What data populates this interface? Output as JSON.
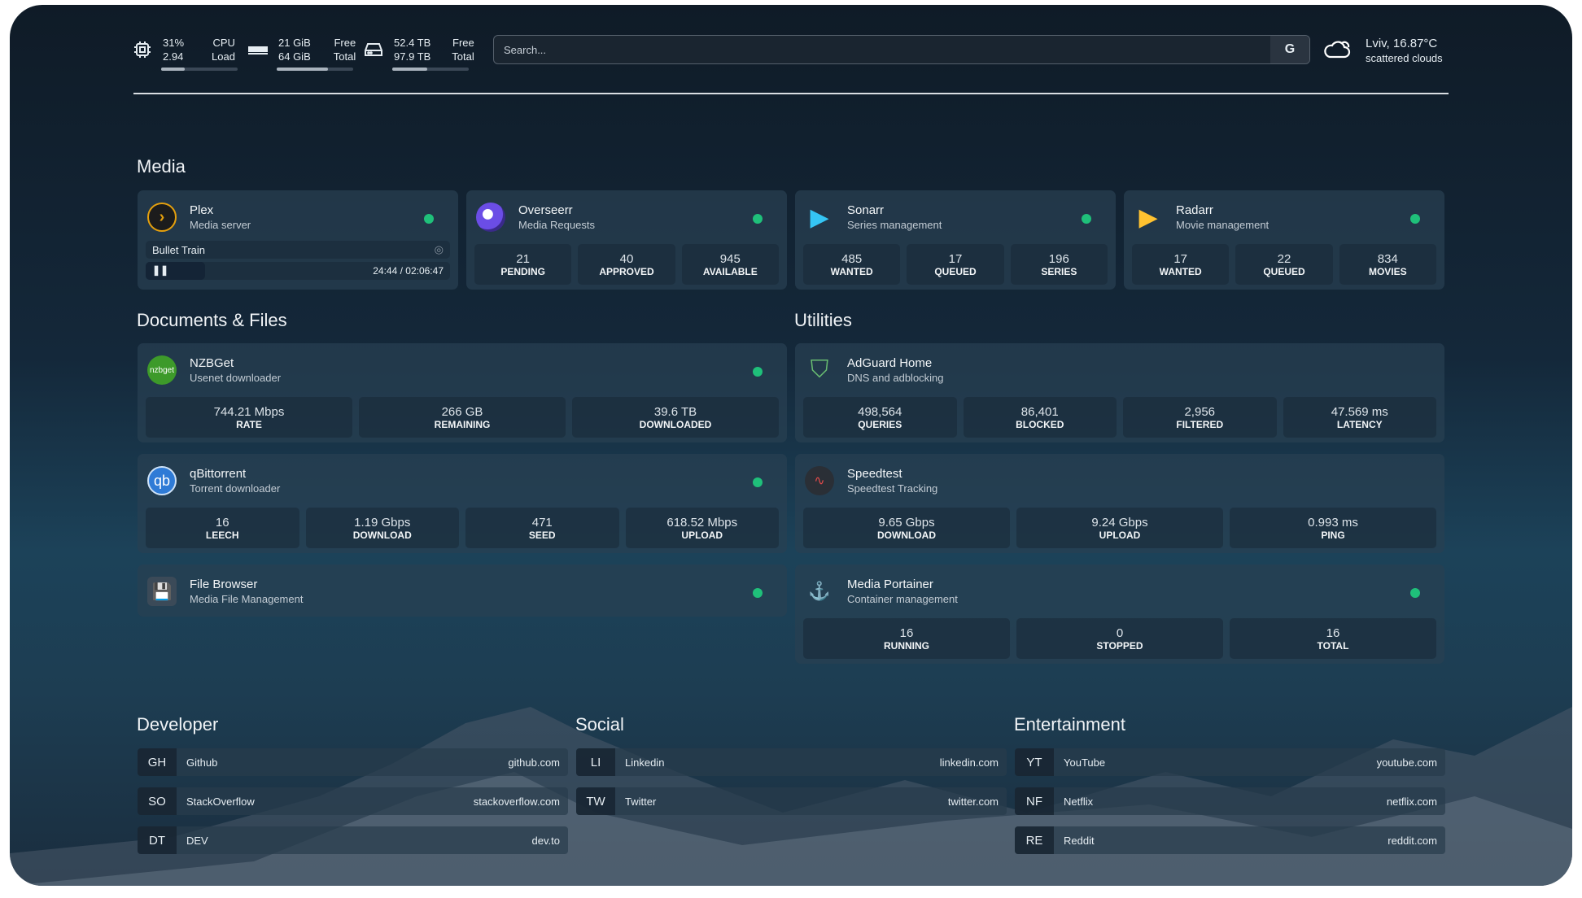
{
  "header": {
    "cpu": {
      "value1": "31%",
      "value2": "2.94",
      "label1": "CPU",
      "label2": "Load",
      "percent": 31,
      "icon": "cpu-icon"
    },
    "memory": {
      "value1": "21 GiB",
      "value2": "64 GiB",
      "label1": "Free",
      "label2": "Total",
      "percent": 67,
      "icon": "memory-icon"
    },
    "disk": {
      "value1": "52.4 TB",
      "value2": "97.9 TB",
      "label1": "Free",
      "label2": "Total",
      "percent": 46,
      "icon": "hard-drive-icon"
    },
    "search": {
      "placeholder": "Search...",
      "button": "G"
    },
    "weather": {
      "location": "Lviv, 16.87°C",
      "condition": "scattered clouds",
      "icon": "cloud-icon"
    }
  },
  "sections": {
    "media": "Media",
    "documents": "Documents & Files",
    "utilities": "Utilities",
    "developer": "Developer",
    "social": "Social",
    "entertainment": "Entertainment"
  },
  "media": [
    {
      "title": "Plex",
      "subtitle": "Media server",
      "now_playing": "Bullet Train",
      "time": "24:44 / 02:06:47",
      "progress": 0.195
    },
    {
      "title": "Overseerr",
      "subtitle": "Media Requests",
      "stats": [
        {
          "value": "21",
          "label": "PENDING"
        },
        {
          "value": "40",
          "label": "APPROVED"
        },
        {
          "value": "945",
          "label": "AVAILABLE"
        }
      ]
    },
    {
      "title": "Sonarr",
      "subtitle": "Series management",
      "stats": [
        {
          "value": "485",
          "label": "WANTED"
        },
        {
          "value": "17",
          "label": "QUEUED"
        },
        {
          "value": "196",
          "label": "SERIES"
        }
      ]
    },
    {
      "title": "Radarr",
      "subtitle": "Movie management",
      "stats": [
        {
          "value": "17",
          "label": "WANTED"
        },
        {
          "value": "22",
          "label": "QUEUED"
        },
        {
          "value": "834",
          "label": "MOVIES"
        }
      ]
    }
  ],
  "documents": [
    {
      "title": "NZBGet",
      "subtitle": "Usenet downloader",
      "logo_text": "nzbget",
      "stats": [
        {
          "value": "744.21 Mbps",
          "label": "RATE"
        },
        {
          "value": "266 GB",
          "label": "REMAINING"
        },
        {
          "value": "39.6 TB",
          "label": "DOWNLOADED"
        }
      ]
    },
    {
      "title": "qBittorrent",
      "subtitle": "Torrent downloader",
      "logo_text": "qb",
      "stats": [
        {
          "value": "16",
          "label": "LEECH"
        },
        {
          "value": "1.19 Gbps",
          "label": "DOWNLOAD"
        },
        {
          "value": "471",
          "label": "SEED"
        },
        {
          "value": "618.52 Mbps",
          "label": "UPLOAD"
        }
      ]
    },
    {
      "title": "File Browser",
      "subtitle": "Media File Management"
    }
  ],
  "utilities": [
    {
      "title": "AdGuard Home",
      "subtitle": "DNS and adblocking",
      "stats": [
        {
          "value": "498,564",
          "label": "QUERIES"
        },
        {
          "value": "86,401",
          "label": "BLOCKED"
        },
        {
          "value": "2,956",
          "label": "FILTERED"
        },
        {
          "value": "47.569 ms",
          "label": "LATENCY"
        }
      ]
    },
    {
      "title": "Speedtest",
      "subtitle": "Speedtest Tracking",
      "stats": [
        {
          "value": "9.65 Gbps",
          "label": "DOWNLOAD"
        },
        {
          "value": "9.24 Gbps",
          "label": "UPLOAD"
        },
        {
          "value": "0.993 ms",
          "label": "PING"
        }
      ]
    },
    {
      "title": "Media Portainer",
      "subtitle": "Container management",
      "stats": [
        {
          "value": "16",
          "label": "RUNNING"
        },
        {
          "value": "0",
          "label": "STOPPED"
        },
        {
          "value": "16",
          "label": "TOTAL"
        }
      ]
    }
  ],
  "developer": [
    {
      "abbr": "GH",
      "name": "Github",
      "url": "github.com"
    },
    {
      "abbr": "SO",
      "name": "StackOverflow",
      "url": "stackoverflow.com"
    },
    {
      "abbr": "DT",
      "name": "DEV",
      "url": "dev.to"
    }
  ],
  "social": [
    {
      "abbr": "LI",
      "name": "Linkedin",
      "url": "linkedin.com"
    },
    {
      "abbr": "TW",
      "name": "Twitter",
      "url": "twitter.com"
    }
  ],
  "entertainment": [
    {
      "abbr": "YT",
      "name": "YouTube",
      "url": "youtube.com"
    },
    {
      "abbr": "NF",
      "name": "Netflix",
      "url": "netflix.com"
    },
    {
      "abbr": "RE",
      "name": "Reddit",
      "url": "reddit.com"
    }
  ],
  "colors": {
    "status_online": "#1fc07a",
    "plex": "#e5a00d",
    "nzbget": "#3d9a2a",
    "qbittorrent": "#2f7bd6",
    "adguard": "#68bc71"
  }
}
